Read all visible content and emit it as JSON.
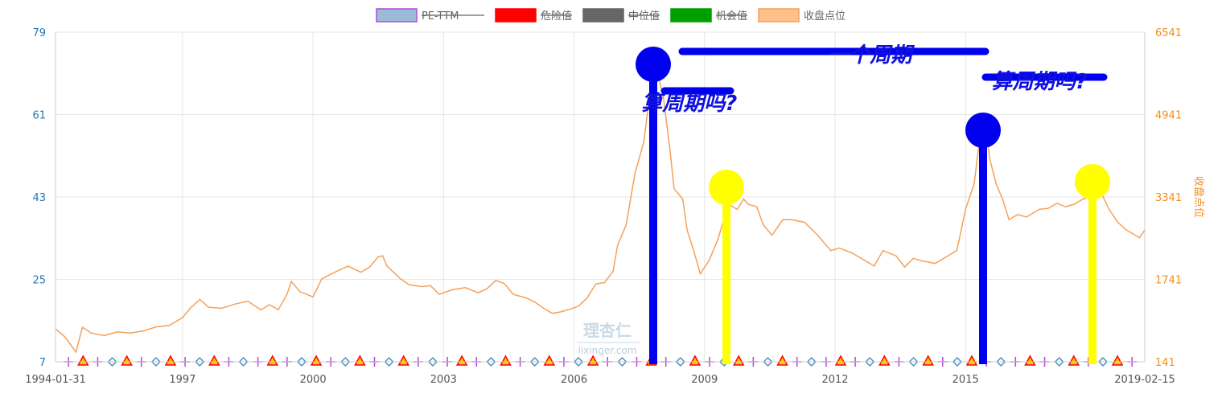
{
  "chart_data": {
    "type": "line",
    "legend": [
      {
        "name": "PE-TTM",
        "color": "#9bbbd9",
        "border": "#b04bd6",
        "struck": true
      },
      {
        "name": "危险值",
        "color": "#ff0000",
        "border": "#ff0000",
        "struck": true
      },
      {
        "name": "中位值",
        "color": "#666666",
        "border": "#666666",
        "struck": true
      },
      {
        "name": "机会值",
        "color": "#00a000",
        "border": "#00a000",
        "struck": true
      },
      {
        "name": "收盘点位",
        "color": "#ffc08a",
        "border": "#f5a05a",
        "struck": false
      }
    ],
    "left_axis": {
      "ticks": [
        "79",
        "61",
        "43",
        "25",
        "7"
      ],
      "range": [
        7,
        79
      ],
      "color": "#1f77b4"
    },
    "right_axis": {
      "ticks": [
        "6541",
        "4941",
        "3341",
        "1741",
        "141"
      ],
      "range": [
        141,
        6541
      ],
      "label": "收盘点位",
      "color": "#f28e1c"
    },
    "x_axis": {
      "range": [
        1994.08,
        2019.12
      ],
      "ticks": [
        {
          "label": "1994-01-31",
          "x": 1994.08
        },
        {
          "label": "1997",
          "x": 1997
        },
        {
          "label": "2000",
          "x": 2000
        },
        {
          "label": "2003",
          "x": 2003
        },
        {
          "label": "2006",
          "x": 2006
        },
        {
          "label": "2009",
          "x": 2009
        },
        {
          "label": "2012",
          "x": 2012
        },
        {
          "label": "2015",
          "x": 2015
        },
        {
          "label": "2019-02-15",
          "x": 2019.12
        }
      ]
    },
    "grid": true,
    "series": [
      {
        "name": "收盘点位",
        "color": "#f5a05a",
        "axis": "right",
        "points": [
          [
            1994.08,
            780
          ],
          [
            1994.3,
            620
          ],
          [
            1994.55,
            330
          ],
          [
            1994.7,
            810
          ],
          [
            1994.9,
            700
          ],
          [
            1995.2,
            650
          ],
          [
            1995.5,
            720
          ],
          [
            1995.8,
            700
          ],
          [
            1996.1,
            740
          ],
          [
            1996.4,
            820
          ],
          [
            1996.7,
            850
          ],
          [
            1997.0,
            1000
          ],
          [
            1997.2,
            1200
          ],
          [
            1997.4,
            1350
          ],
          [
            1997.6,
            1200
          ],
          [
            1997.9,
            1180
          ],
          [
            1998.2,
            1260
          ],
          [
            1998.5,
            1320
          ],
          [
            1998.8,
            1150
          ],
          [
            1999.0,
            1250
          ],
          [
            1999.2,
            1150
          ],
          [
            1999.4,
            1450
          ],
          [
            1999.5,
            1700
          ],
          [
            1999.7,
            1500
          ],
          [
            2000.0,
            1400
          ],
          [
            2000.2,
            1750
          ],
          [
            2000.5,
            1880
          ],
          [
            2000.8,
            2000
          ],
          [
            2001.1,
            1880
          ],
          [
            2001.3,
            1980
          ],
          [
            2001.5,
            2180
          ],
          [
            2001.6,
            2200
          ],
          [
            2001.7,
            2000
          ],
          [
            2002.0,
            1760
          ],
          [
            2002.2,
            1640
          ],
          [
            2002.5,
            1600
          ],
          [
            2002.7,
            1620
          ],
          [
            2002.9,
            1450
          ],
          [
            2003.2,
            1540
          ],
          [
            2003.5,
            1580
          ],
          [
            2003.8,
            1480
          ],
          [
            2004.0,
            1560
          ],
          [
            2004.2,
            1720
          ],
          [
            2004.4,
            1660
          ],
          [
            2004.6,
            1450
          ],
          [
            2004.9,
            1380
          ],
          [
            2005.1,
            1300
          ],
          [
            2005.3,
            1180
          ],
          [
            2005.5,
            1080
          ],
          [
            2005.7,
            1110
          ],
          [
            2005.9,
            1160
          ],
          [
            2006.1,
            1220
          ],
          [
            2006.3,
            1380
          ],
          [
            2006.5,
            1650
          ],
          [
            2006.7,
            1680
          ],
          [
            2006.9,
            1900
          ],
          [
            2007.0,
            2400
          ],
          [
            2007.2,
            2800
          ],
          [
            2007.4,
            3800
          ],
          [
            2007.6,
            4400
          ],
          [
            2007.8,
            5700
          ],
          [
            2007.9,
            5800
          ],
          [
            2008.05,
            5300
          ],
          [
            2008.2,
            4300
          ],
          [
            2008.3,
            3500
          ],
          [
            2008.5,
            3300
          ],
          [
            2008.6,
            2700
          ],
          [
            2008.75,
            2300
          ],
          [
            2008.9,
            1850
          ],
          [
            2009.1,
            2100
          ],
          [
            2009.3,
            2500
          ],
          [
            2009.55,
            3200
          ],
          [
            2009.75,
            3100
          ],
          [
            2009.9,
            3300
          ],
          [
            2010.0,
            3200
          ],
          [
            2010.2,
            3150
          ],
          [
            2010.35,
            2800
          ],
          [
            2010.55,
            2600
          ],
          [
            2010.8,
            2900
          ],
          [
            2011.0,
            2900
          ],
          [
            2011.3,
            2850
          ],
          [
            2011.6,
            2600
          ],
          [
            2011.9,
            2300
          ],
          [
            2012.1,
            2350
          ],
          [
            2012.4,
            2250
          ],
          [
            2012.7,
            2100
          ],
          [
            2012.9,
            2000
          ],
          [
            2013.1,
            2300
          ],
          [
            2013.4,
            2200
          ],
          [
            2013.6,
            1980
          ],
          [
            2013.8,
            2150
          ],
          [
            2014.0,
            2100
          ],
          [
            2014.3,
            2050
          ],
          [
            2014.6,
            2200
          ],
          [
            2014.8,
            2300
          ],
          [
            2015.0,
            3100
          ],
          [
            2015.2,
            3600
          ],
          [
            2015.35,
            4650
          ],
          [
            2015.45,
            4900
          ],
          [
            2015.55,
            4100
          ],
          [
            2015.7,
            3600
          ],
          [
            2015.85,
            3300
          ],
          [
            2016.0,
            2900
          ],
          [
            2016.2,
            3000
          ],
          [
            2016.4,
            2950
          ],
          [
            2016.7,
            3100
          ],
          [
            2016.9,
            3120
          ],
          [
            2017.1,
            3220
          ],
          [
            2017.3,
            3150
          ],
          [
            2017.5,
            3200
          ],
          [
            2017.7,
            3300
          ],
          [
            2017.9,
            3350
          ],
          [
            2018.1,
            3450
          ],
          [
            2018.3,
            3100
          ],
          [
            2018.5,
            2850
          ],
          [
            2018.7,
            2700
          ],
          [
            2018.9,
            2600
          ],
          [
            2019.0,
            2550
          ],
          [
            2019.12,
            2700
          ]
        ]
      }
    ],
    "marker_row": {
      "y": 7,
      "x_start": 1994.38,
      "x_step": 0.3349,
      "pattern": [
        "plus",
        "tri",
        "plus",
        "diamond",
        "tri",
        "plus",
        "diamond",
        "tri",
        "plus",
        "diamond",
        "tri",
        "plus",
        "diamond"
      ],
      "count": 75
    },
    "annotations": {
      "text": [
        {
          "label": "算周期吗?",
          "x": 2008.65,
          "y": 5030
        },
        {
          "label": "一个周期",
          "x": 2012.8,
          "y": 5960
        },
        {
          "label": "算周期吗?",
          "x": 2016.7,
          "y": 5450
        }
      ]
    }
  },
  "watermark": {
    "logo": "理杏仁",
    "url": "lixinger.com"
  }
}
